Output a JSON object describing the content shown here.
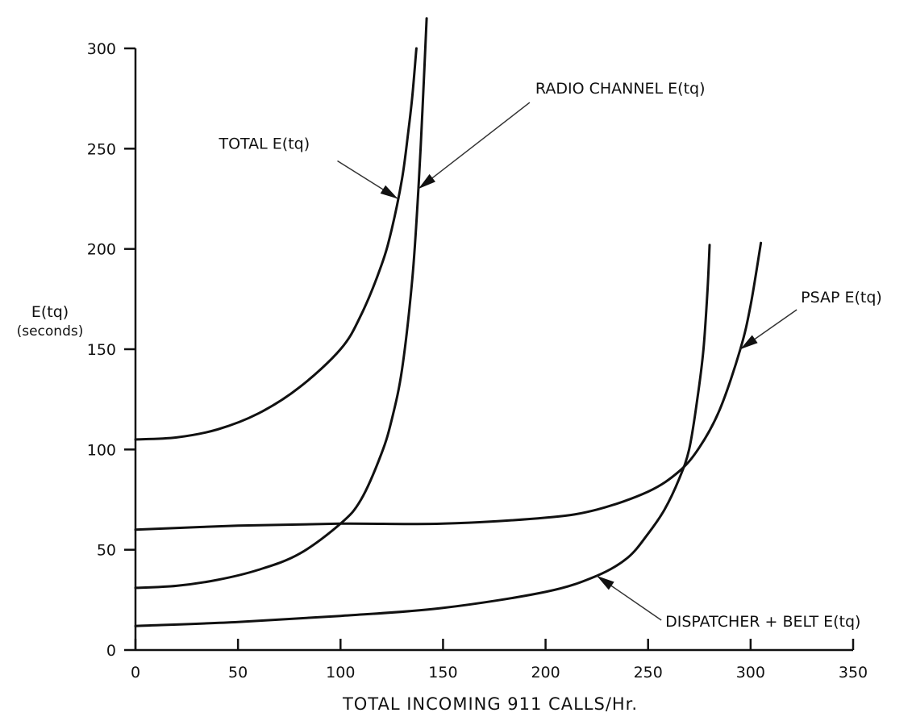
{
  "chart_data": {
    "type": "line",
    "xlabel": "TOTAL INCOMING 911 CALLS/Hr.",
    "ylabel": "E(tq)",
    "ylabel_sub": "(seconds)",
    "xlim": [
      0,
      350
    ],
    "ylim": [
      0,
      300
    ],
    "x_ticks": [
      0,
      50,
      100,
      150,
      200,
      250,
      300,
      350
    ],
    "y_ticks": [
      0,
      50,
      100,
      150,
      200,
      250,
      300
    ],
    "grid": false,
    "series": [
      {
        "name": "TOTAL E(tq)",
        "x": [
          0,
          20,
          40,
          60,
          80,
          100,
          110,
          120,
          125,
          130,
          133,
          135,
          137
        ],
        "y": [
          105,
          106,
          110,
          118,
          131,
          150,
          167,
          192,
          210,
          235,
          258,
          276,
          300
        ]
      },
      {
        "name": "RADIO CHANNEL E(tq)",
        "x": [
          0,
          20,
          40,
          60,
          80,
          100,
          110,
          120,
          125,
          130,
          135,
          138,
          140,
          142
        ],
        "y": [
          31,
          32,
          35,
          40,
          48,
          63,
          75,
          98,
          115,
          140,
          185,
          230,
          270,
          315
        ]
      },
      {
        "name": "PSAP E(tq)",
        "x": [
          0,
          50,
          100,
          150,
          200,
          225,
          250,
          265,
          275,
          285,
          295,
          300,
          305
        ],
        "y": [
          60,
          62,
          63,
          63,
          66,
          70,
          79,
          89,
          101,
          120,
          150,
          172,
          203
        ]
      },
      {
        "name": "DISPATCHER + BELT E(tq)",
        "x": [
          0,
          50,
          100,
          150,
          200,
          225,
          240,
          250,
          258,
          265,
          270,
          274,
          277,
          279,
          280
        ],
        "y": [
          12,
          14,
          17,
          21,
          29,
          37,
          46,
          58,
          70,
          85,
          100,
          125,
          150,
          180,
          202
        ]
      }
    ],
    "annotations": [
      {
        "text": "TOTAL E(tq)",
        "series": 0,
        "at_x": 128
      },
      {
        "text": "RADIO CHANNEL E(tq)",
        "series": 1,
        "at_x": 138
      },
      {
        "text": "PSAP E(tq)",
        "series": 2,
        "at_x": 295
      },
      {
        "text": "DISPATCHER + BELT E(tq)",
        "series": 3,
        "at_x": 225
      }
    ]
  }
}
